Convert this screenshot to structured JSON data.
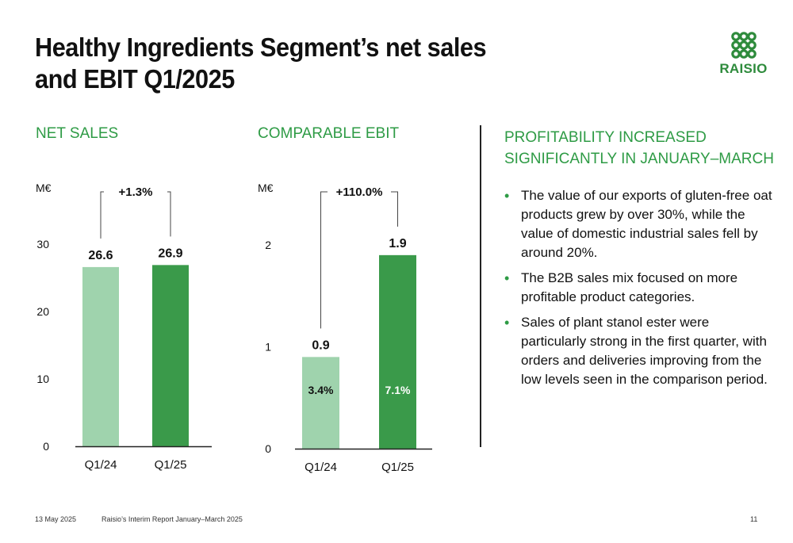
{
  "title": {
    "line1": "Healthy Ingredients Segment’s net sales",
    "line2": "and EBIT Q1/2025"
  },
  "logo": {
    "text": "RAISIO",
    "icon": "raisio-grain-logo-icon",
    "color": "#2e8b3c"
  },
  "colors": {
    "light_bar": "#9fd3ad",
    "dark_bar": "#3a9a4a",
    "heading": "#2e9b45"
  },
  "chart_data": [
    {
      "type": "bar",
      "title": "NET SALES",
      "ylabel": "M€",
      "categories": [
        "Q1/24",
        "Q1/25"
      ],
      "values": [
        26.6,
        26.9
      ],
      "value_labels": [
        "26.6",
        "26.9"
      ],
      "ylim": [
        0,
        30
      ],
      "yticks": [
        0,
        10,
        20,
        30
      ],
      "ytick_labels": [
        "0",
        "10",
        "20",
        "30"
      ],
      "change_label": "+1.3%",
      "grid": false,
      "bar_colors": [
        "#9fd3ad",
        "#3a9a4a"
      ]
    },
    {
      "type": "bar",
      "title": "COMPARABLE EBIT",
      "ylabel": "M€",
      "categories": [
        "Q1/24",
        "Q1/25"
      ],
      "values": [
        0.9,
        1.9
      ],
      "value_labels": [
        "0.9",
        "1.9"
      ],
      "inner_labels": [
        "3.4%",
        "7.1%"
      ],
      "ylim": [
        0,
        2.0
      ],
      "yticks": [
        0,
        1,
        2
      ],
      "ytick_labels": [
        "0",
        "1",
        "2"
      ],
      "change_label": "+110.0%",
      "grid": false,
      "bar_colors": [
        "#9fd3ad",
        "#3a9a4a"
      ]
    }
  ],
  "right": {
    "heading_line1": "PROFITABILITY INCREASED",
    "heading_line2": "SIGNIFICANTLY IN JANUARY–MARCH",
    "bullets": [
      "The value of our exports of gluten-free oat products grew by over 30%, while the value of domestic industrial sales fell by around 20%.",
      "The B2B sales mix focused on more profitable product categories.",
      "Sales of plant stanol ester were particularly strong in the first quarter, with orders and deliveries improving from the low levels seen in the comparison period."
    ],
    "bullet_symbol": "•"
  },
  "footer": {
    "date": "13 May 2025",
    "report": "Raisio’s Interim Report January–March 2025",
    "page": "11"
  }
}
